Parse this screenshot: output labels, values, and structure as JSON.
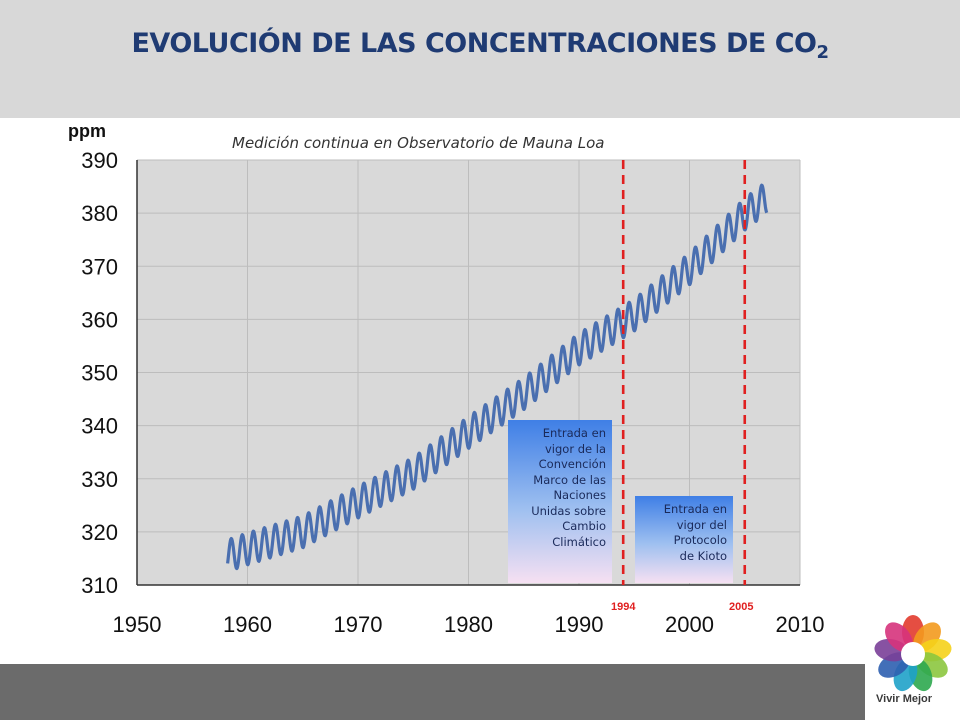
{
  "header": {
    "title_main": "EVOLUCIÓN DE LAS CONCENTRACIONES DE CO",
    "title_sub": "2"
  },
  "chart_data": {
    "type": "line",
    "title": "EVOLUCIÓN DE LAS CONCENTRACIONES DE CO2",
    "subtitle": "Medición continua en Observatorio de Mauna Loa",
    "ylabel": "ppm",
    "xlabel": "",
    "xlim": [
      1950,
      2010
    ],
    "ylim": [
      310,
      390
    ],
    "x_ticks": [
      "1950",
      "1960",
      "1970",
      "1980",
      "1990",
      "2000",
      "2010"
    ],
    "y_ticks": [
      "310",
      "320",
      "330",
      "340",
      "350",
      "360",
      "370",
      "380",
      "390"
    ],
    "grid": true,
    "series_color": "#4a6fb0",
    "trend_points": [
      {
        "x": 1958.2,
        "y": 315.5
      },
      {
        "x": 1960,
        "y": 316.8
      },
      {
        "x": 1965,
        "y": 320.0
      },
      {
        "x": 1970,
        "y": 325.6
      },
      {
        "x": 1975,
        "y": 331.0
      },
      {
        "x": 1980,
        "y": 338.7
      },
      {
        "x": 1985,
        "y": 346.0
      },
      {
        "x": 1990,
        "y": 354.4
      },
      {
        "x": 1995,
        "y": 360.8
      },
      {
        "x": 2000,
        "y": 369.5
      },
      {
        "x": 2005,
        "y": 379.8
      },
      {
        "x": 2007.0,
        "y": 383.0
      }
    ],
    "seasonal_amplitude": 3,
    "markers": [
      {
        "year": 1994,
        "label": "1994",
        "color": "#e02020"
      },
      {
        "year": 2005,
        "label": "2005",
        "color": "#e02020"
      }
    ],
    "annotations": [
      {
        "text": "Entrada en vigor de la Convención Marco de las Naciones Unidas sobre Cambio Climático",
        "lines": [
          "Entrada en",
          "vigor de la",
          "Convención",
          "Marco de las",
          "Naciones",
          "Unidas sobre",
          "Cambio",
          "Climático"
        ]
      },
      {
        "text": "Entrada en vigor del Protocolo de Kioto",
        "lines": [
          "Entrada en",
          "vigor del",
          "Protocolo",
          "de Kioto"
        ]
      }
    ]
  },
  "logo": {
    "text": "Vivir Mejor",
    "petal_colors": [
      "#e23b2e",
      "#f39a1e",
      "#f5d21a",
      "#8cc63f",
      "#2ea84f",
      "#1fa2c9",
      "#2e5fb0",
      "#7a3f98",
      "#d6337c"
    ]
  }
}
